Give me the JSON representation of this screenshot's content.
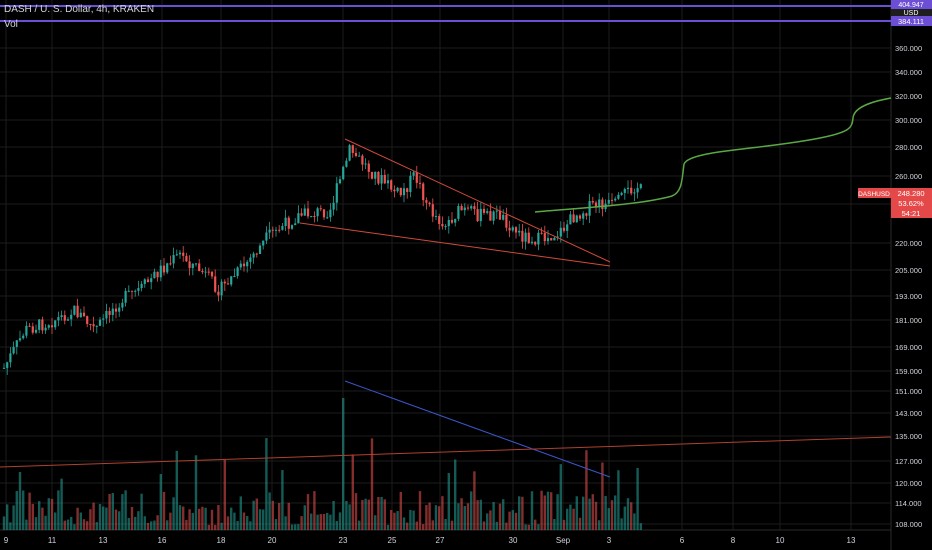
{
  "header": {
    "title": "DASH / U. S. Dollar, 4h, KRAKEN",
    "volume_label": "Vol"
  },
  "price_axis": {
    "currency": "USD",
    "ticks": [
      "360.000",
      "340.000",
      "320.000",
      "300.000",
      "280.000",
      "260.000",
      "240.000",
      "220.000",
      "205.000",
      "193.000",
      "181.000",
      "169.000",
      "159.000",
      "151.000",
      "143.000",
      "135.000",
      "127.000",
      "120.000",
      "114.000",
      "108.000"
    ],
    "top_label": "404.947",
    "level_label": "384.111",
    "current": {
      "symbol": "DASHUSD",
      "price": "248.280",
      "change": "53.62%",
      "countdown": "54:21"
    }
  },
  "time_axis": {
    "ticks": [
      "9",
      "11",
      "13",
      "16",
      "18",
      "20",
      "23",
      "25",
      "27",
      "30",
      "Sep",
      "3",
      "6",
      "8",
      "10",
      "13"
    ]
  },
  "colors": {
    "up": "#26a69a",
    "down": "#ef5350",
    "grid": "#1c1c1c",
    "purple": "#6d4fd6",
    "green_curve": "#5aa844",
    "blue_line": "#3a57c9",
    "red_line": "#d04a3a"
  }
}
